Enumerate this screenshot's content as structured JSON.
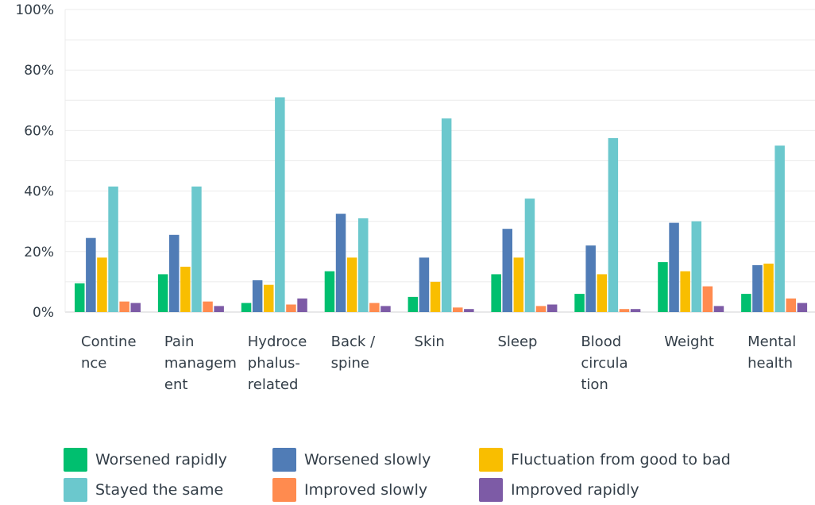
{
  "chart_data": {
    "type": "bar",
    "categories": [
      [
        "Contine",
        "nce"
      ],
      [
        "Pain",
        "managem",
        "ent"
      ],
      [
        "Hydroce",
        "phalus-",
        "related"
      ],
      [
        "Back /",
        "spine"
      ],
      [
        "Skin"
      ],
      [
        "Sleep"
      ],
      [
        "Blood",
        "circula",
        "tion"
      ],
      [
        "Weight"
      ],
      [
        "Mental",
        "health"
      ]
    ],
    "yticks": [
      "100%",
      "80%",
      "60%",
      "40%",
      "20%",
      "0%"
    ],
    "ylim": [
      0,
      100
    ],
    "grid": true,
    "legend_position": "bottom",
    "series": [
      {
        "name": "Worsened rapidly",
        "color": "#00bf6f",
        "values": [
          9.5,
          12.5,
          3,
          13.5,
          5,
          12.5,
          6,
          16.5,
          6
        ]
      },
      {
        "name": "Worsened slowly",
        "color": "#507cb6",
        "values": [
          24.5,
          25.5,
          10.5,
          32.5,
          18,
          27.5,
          22,
          29.5,
          15.5
        ]
      },
      {
        "name": "Fluctuation from good to bad",
        "color": "#f9be00",
        "values": [
          18,
          15,
          9,
          18,
          10,
          18,
          12.5,
          13.5,
          16
        ]
      },
      {
        "name": "Stayed the same",
        "color": "#6bc8cd",
        "values": [
          41.5,
          41.5,
          71,
          31,
          64,
          37.5,
          57.5,
          30,
          55
        ]
      },
      {
        "name": "Improved slowly",
        "color": "#ff8b4f",
        "values": [
          3.5,
          3.5,
          2.5,
          3,
          1.5,
          2,
          1,
          8.5,
          4.5
        ]
      },
      {
        "name": "Improved rapidly",
        "color": "#7d5ba6",
        "values": [
          3,
          2,
          4.5,
          2,
          1,
          2.5,
          1,
          2,
          3
        ]
      }
    ]
  },
  "legend_rows": [
    [
      0,
      1,
      2
    ],
    [
      3,
      4,
      5
    ]
  ]
}
